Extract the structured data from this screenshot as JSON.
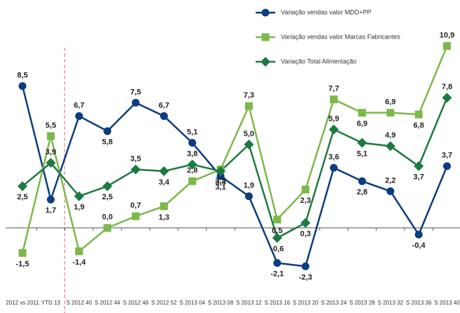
{
  "chart_data": {
    "type": "line",
    "categories": [
      "2012 vs 2011",
      "YTD 13",
      "S 2012 40",
      "S 2012 44",
      "S 2012 48",
      "S 2012 52",
      "S 2013 04",
      "S 2013 08",
      "S 2013 12",
      "S 2013 16",
      "S 2013 20",
      "S 2013 24",
      "S 2013 28",
      "S 2013 32",
      "S 2013 36",
      "S 2013 40"
    ],
    "ylim": [
      -3.5,
      12
    ],
    "legend": "top-right",
    "series": [
      {
        "name": "Variação vendas valor MDD+PP",
        "color": "#0b3d7f",
        "marker": "circle",
        "values": [
          8.5,
          1.7,
          6.7,
          5.8,
          7.5,
          6.7,
          5.1,
          3.1,
          1.9,
          -2.1,
          -2.3,
          3.6,
          2.8,
          2.2,
          -0.4,
          3.7
        ],
        "value_labels": [
          "8,5",
          "1,7",
          "6,7",
          "5,8",
          "7,5",
          "6,7",
          "5,1",
          "3,1",
          "1,9",
          "-2,1",
          "-2,3",
          "3,6",
          "2,8",
          "2,2",
          "-0,4",
          "3,7"
        ]
      },
      {
        "name": "Variação vendas valor Marcas Fabricantes",
        "color": "#7cb84a",
        "marker": "square",
        "values": [
          -1.5,
          5.5,
          -1.4,
          0.0,
          0.7,
          1.3,
          2.8,
          3.5,
          7.3,
          0.5,
          2.3,
          7.7,
          6.9,
          6.9,
          6.8,
          10.9
        ],
        "value_labels": [
          "-1,5",
          "5,5",
          "-1,4",
          "0,0",
          "0,7",
          "1,3",
          "2,8",
          "3,5",
          "7,3",
          "0,5",
          "2,3",
          "7,7",
          "6,9",
          "6,9",
          "6,8",
          "10,9"
        ]
      },
      {
        "name": "Variação Total Alimentação",
        "color": "#1c7a40",
        "marker": "diamond",
        "values": [
          2.5,
          3.9,
          1.9,
          2.5,
          3.5,
          3.4,
          3.8,
          3.4,
          5.0,
          -0.6,
          0.3,
          5.9,
          5.1,
          4.9,
          3.7,
          7.8
        ],
        "value_labels": [
          "2,5",
          "3,9",
          "1,9",
          "2,5",
          "3,5",
          "3,4",
          "3,8",
          "3,4",
          "5,0",
          "-0,6",
          "0,3",
          "5,9",
          "5,1",
          "4,9",
          "3,7",
          "7,8"
        ]
      }
    ]
  }
}
